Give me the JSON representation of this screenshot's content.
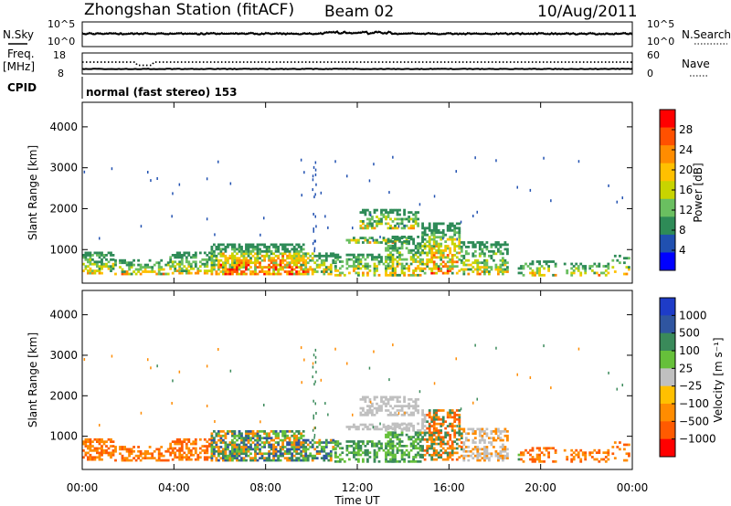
{
  "header": {
    "title": "Zhongshan Station (fitACF)",
    "beam": "Beam 02",
    "date": "10/Aug/2011"
  },
  "noise_panel": {
    "left_label": "N.Sky",
    "right_label": "N.Search",
    "left_ticks": [
      "10^5",
      "10^0"
    ],
    "right_ticks": [
      "10^5",
      "10^0"
    ]
  },
  "freq_panel": {
    "left_label_line1": "Freq.",
    "left_label_line2": "[MHz]",
    "right_label": "Nave",
    "left_ticks": [
      "18",
      "8"
    ],
    "right_ticks": [
      "60",
      "0"
    ]
  },
  "cpid_panel": {
    "label": "CPID",
    "value": "normal (fast stereo) 153"
  },
  "colors": {
    "power_scale": [
      "#0000ff",
      "#2050b0",
      "#2e8b57",
      "#6abf60",
      "#c8d400",
      "#ffc000",
      "#ff8c00",
      "#ff5000",
      "#ff0000"
    ],
    "velocity_scale": [
      "#1e3cc8",
      "#2f55a0",
      "#3a8a5a",
      "#66c03a",
      "#c0c0c0",
      "#ffc000",
      "#ff8c00",
      "#ff5a00",
      "#ff0000"
    ]
  },
  "chart_data": [
    {
      "type": "heatmap",
      "name": "power",
      "ylabel": "Slant Range [km]",
      "colorbar_label": "Power [dB]",
      "colorbar_ticks": [
        "4",
        "8",
        "12",
        "16",
        "20",
        "24",
        "28"
      ],
      "xlim_hours": [
        0,
        24
      ],
      "ylim_km": [
        180,
        4600
      ],
      "yticks": [
        "1000",
        "2000",
        "3000",
        "4000"
      ],
      "ytick_values": [
        1000,
        2000,
        3000,
        4000
      ]
    },
    {
      "type": "heatmap",
      "name": "velocity",
      "ylabel": "Slant Range [km]",
      "colorbar_label": "Velocity [m s⁻¹]",
      "colorbar_ticks": [
        "1000",
        "500",
        "100",
        "25",
        "−25",
        "−100",
        "−500",
        "−1000"
      ],
      "xlim_hours": [
        0,
        24
      ],
      "ylim_km": [
        180,
        4600
      ],
      "yticks": [
        "1000",
        "2000",
        "3000",
        "4000"
      ],
      "ytick_values": [
        1000,
        2000,
        3000,
        4000
      ]
    }
  ],
  "xaxis": {
    "label": "Time UT",
    "ticks": [
      "00:00",
      "04:00",
      "08:00",
      "12:00",
      "16:00",
      "20:00",
      "00:00"
    ],
    "tick_hours": [
      0,
      4,
      8,
      12,
      16,
      20,
      24
    ]
  }
}
